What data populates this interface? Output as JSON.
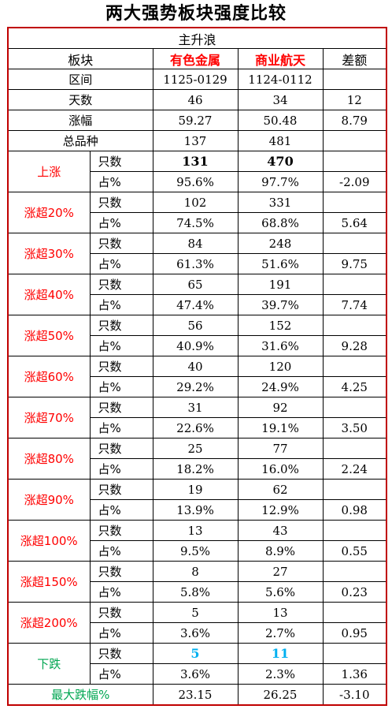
{
  "title": "两大强势板块强度比较",
  "section": "主升浪",
  "header": {
    "label": "板块",
    "a": "有色金属",
    "b": "商业航天",
    "diff": "差额"
  },
  "info_rows": [
    {
      "label": "区间",
      "a": "1125-0129",
      "b": "1124-0112",
      "diff": ""
    },
    {
      "label": "天数",
      "a": "46",
      "b": "34",
      "diff": "12"
    },
    {
      "label": "涨幅",
      "a": "59.27",
      "b": "50.48",
      "diff": "8.79"
    },
    {
      "label": "总品种",
      "a": "137",
      "b": "481",
      "diff": ""
    }
  ],
  "sub_labels": {
    "count": "只数",
    "pct": "占%"
  },
  "groups": [
    {
      "label": "上涨",
      "color": "#ff0000",
      "count_a": "131",
      "count_b": "470",
      "pct_a": "95.6%",
      "pct_b": "97.7%",
      "diff": "-2.09"
    },
    {
      "label": "涨超20%",
      "color": "#ff0000",
      "count_a": "102",
      "count_b": "331",
      "pct_a": "74.5%",
      "pct_b": "68.8%",
      "diff": "5.64"
    },
    {
      "label": "涨超30%",
      "color": "#ff0000",
      "count_a": "84",
      "count_b": "248",
      "pct_a": "61.3%",
      "pct_b": "51.6%",
      "diff": "9.75"
    },
    {
      "label": "涨超40%",
      "color": "#ff0000",
      "count_a": "65",
      "count_b": "191",
      "pct_a": "47.4%",
      "pct_b": "39.7%",
      "diff": "7.74"
    },
    {
      "label": "涨超50%",
      "color": "#ff0000",
      "count_a": "56",
      "count_b": "152",
      "pct_a": "40.9%",
      "pct_b": "31.6%",
      "diff": "9.28"
    },
    {
      "label": "涨超60%",
      "color": "#ff0000",
      "count_a": "40",
      "count_b": "120",
      "pct_a": "29.2%",
      "pct_b": "24.9%",
      "diff": "4.25"
    },
    {
      "label": "涨超70%",
      "color": "#ff0000",
      "count_a": "31",
      "count_b": "92",
      "pct_a": "22.6%",
      "pct_b": "19.1%",
      "diff": "3.50"
    },
    {
      "label": "涨超80%",
      "color": "#ff0000",
      "count_a": "25",
      "count_b": "77",
      "pct_a": "18.2%",
      "pct_b": "16.0%",
      "diff": "2.24"
    },
    {
      "label": "涨超90%",
      "color": "#ff0000",
      "count_a": "19",
      "count_b": "62",
      "pct_a": "13.9%",
      "pct_b": "12.9%",
      "diff": "0.98"
    },
    {
      "label": "涨超100%",
      "color": "#ff0000",
      "count_a": "13",
      "count_b": "43",
      "pct_a": "9.5%",
      "pct_b": "8.9%",
      "diff": "0.55"
    },
    {
      "label": "涨超150%",
      "color": "#ff0000",
      "count_a": "8",
      "count_b": "27",
      "pct_a": "5.8%",
      "pct_b": "5.6%",
      "diff": "0.23"
    },
    {
      "label": "涨超200%",
      "color": "#ff0000",
      "count_a": "5",
      "count_b": "13",
      "pct_a": "3.6%",
      "pct_b": "2.7%",
      "diff": "0.95"
    },
    {
      "label": "下跌",
      "color": "#00a651",
      "count_a": "5",
      "count_b": "11",
      "pct_a": "3.6%",
      "pct_b": "2.3%",
      "diff": "1.36"
    }
  ],
  "footer_row": {
    "label": "最大跌幅%",
    "a": "23.15",
    "b": "26.25",
    "diff": "-3.10"
  }
}
